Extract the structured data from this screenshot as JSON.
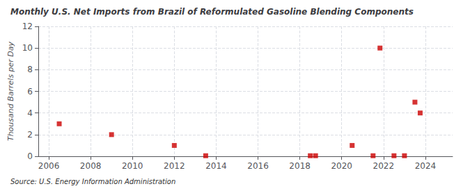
{
  "chart_data": {
    "type": "scatter",
    "title": "Monthly U.S. Net Imports from Brazil of Reformulated Gasoline Blending Components",
    "ylabel": "Thousand Barrels per Day",
    "source": "Source: U.S. Energy Information Administration",
    "x": [
      2006.5,
      2009.0,
      2012.0,
      2013.5,
      2018.5,
      2018.75,
      2020.5,
      2021.5,
      2021.83,
      2022.5,
      2023.0,
      2023.5,
      2023.75
    ],
    "values": [
      3.0,
      2.0,
      1.0,
      0.05,
      0.05,
      0.05,
      1.0,
      0.05,
      10.0,
      0.05,
      0.05,
      5.0,
      4.0
    ],
    "color": "#cc0000",
    "marker": "square",
    "xlim": [
      2005.5,
      2025.3
    ],
    "xticks": [
      2006,
      2008,
      2010,
      2012,
      2014,
      2016,
      2018,
      2020,
      2022,
      2024
    ],
    "ylim": [
      0,
      12
    ],
    "yticks": [
      0,
      2,
      4,
      6,
      8,
      10,
      12
    ],
    "grid": true
  }
}
